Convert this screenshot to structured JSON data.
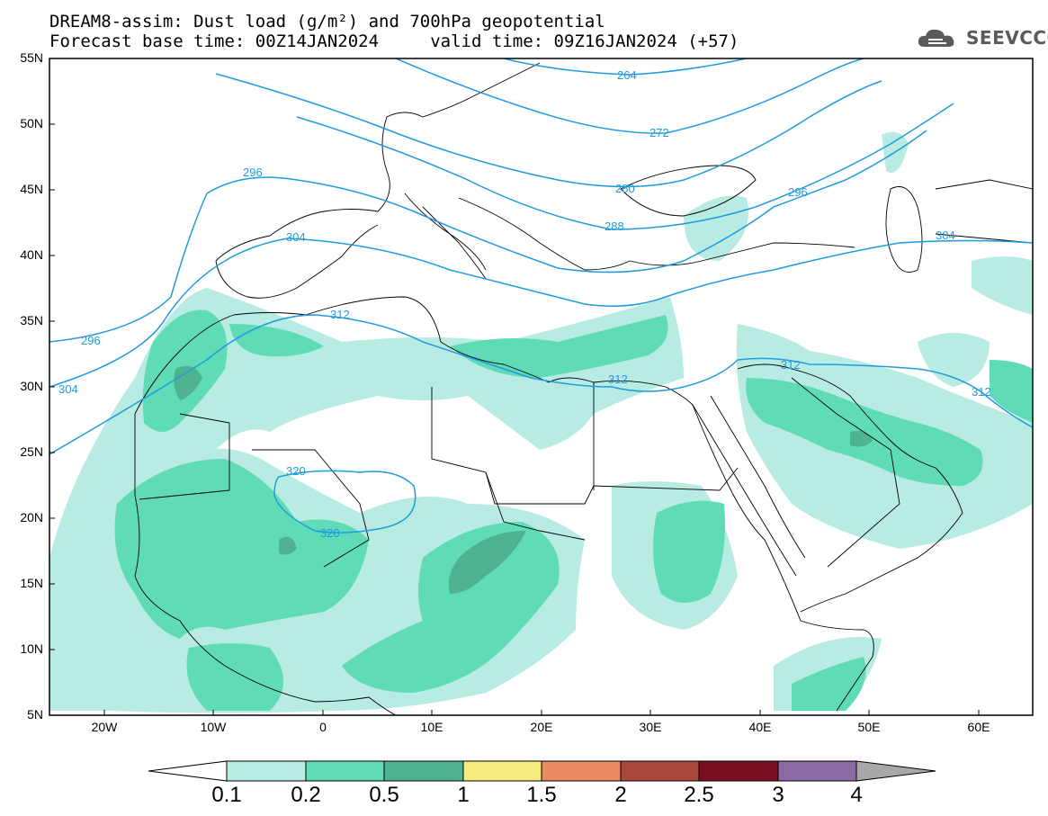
{
  "header": {
    "line1": "DREAM8-assim: Dust load (g/m²) and 700hPa geopotential",
    "line2": "Forecast base time: 00Z14JAN2024     valid time: 09Z16JAN2024 (+57)"
  },
  "logo": {
    "text": "SEEVCCC",
    "icon": "cloud-icon"
  },
  "map": {
    "lon_range": [
      -25,
      65
    ],
    "lat_range": [
      5,
      55
    ],
    "lat_labels": [
      "55N",
      "50N",
      "45N",
      "40N",
      "35N",
      "30N",
      "25N",
      "20N",
      "15N",
      "10N",
      "5N"
    ],
    "lon_labels": [
      "20W",
      "10W",
      "0",
      "10E",
      "20E",
      "30E",
      "40E",
      "50E",
      "60E"
    ],
    "contour_labels": [
      "264",
      "272",
      "280",
      "288",
      "296",
      "296",
      "296",
      "304",
      "304",
      "304",
      "312",
      "312",
      "312",
      "312",
      "320",
      "320"
    ],
    "colors": {
      "land_border": "#000000",
      "contour": "#1f9be0",
      "dust_0_1": "#b8ebe2",
      "dust_0_2": "#5fdcb6",
      "dust_0_5": "#4fb391"
    }
  },
  "colorbar": {
    "labels": [
      "0.1",
      "0.2",
      "0.5",
      "1",
      "1.5",
      "2",
      "2.5",
      "3",
      "4"
    ],
    "colors": [
      "#ffffff",
      "#b8ebe2",
      "#5fdcb6",
      "#4fb391",
      "#f7ec7e",
      "#e98a63",
      "#a9483c",
      "#7a0f24",
      "#8c6aa3",
      "#a8a8a8"
    ]
  }
}
